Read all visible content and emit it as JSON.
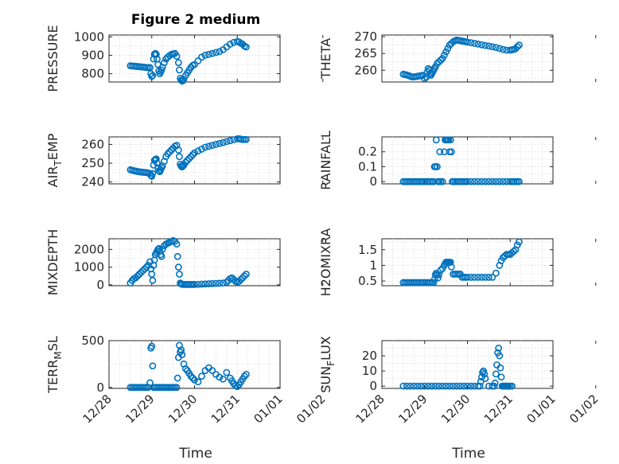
{
  "figure": {
    "title": "Figure 2 medium",
    "marker_color": "#0072bd",
    "x_tick_labels": [
      "12/28",
      "12/29",
      "12/30",
      "12/31",
      "01/01",
      "01/02"
    ],
    "x_label": "Time"
  },
  "chart_data": [
    {
      "type": "scatter",
      "ylabel": "PRESSURE",
      "ylim": [
        755,
        1010
      ],
      "yticks": [
        800,
        900,
        1000
      ],
      "ytick_labels": [
        "800",
        "900",
        "1000"
      ],
      "x": [
        12.0,
        13.0,
        14.0,
        15.0,
        16.0,
        17.0,
        18.0,
        19.0,
        20.0,
        21.0,
        22.0,
        23.0,
        23.5,
        24.0,
        24.5,
        25.0,
        25.5,
        26.0,
        26.5,
        27.0,
        27.5,
        28.0,
        28.5,
        29.0,
        29.5,
        30.0,
        31.0,
        32.0,
        33.0,
        34.0,
        35.0,
        36.0,
        37.0,
        38.0,
        39.0,
        39.5,
        40.0,
        40.5,
        41.0,
        41.5,
        42.0,
        43.0,
        44.0,
        45.0,
        46.0,
        47.0,
        48.0,
        50.0,
        52.0,
        54.0,
        56.0,
        58.0,
        60.0,
        62.0,
        64.0,
        66.0,
        68.0,
        70.0,
        72.0,
        73.0,
        74.0,
        75.0,
        76.0,
        77.0
      ],
      "y": [
        843,
        842,
        841,
        840,
        839,
        838,
        837,
        836,
        835,
        834,
        833,
        833,
        800,
        785,
        790,
        880,
        905,
        910,
        905,
        880,
        850,
        815,
        800,
        810,
        820,
        835,
        860,
        880,
        890,
        898,
        905,
        908,
        910,
        895,
        860,
        820,
        775,
        765,
        760,
        762,
        770,
        790,
        805,
        820,
        835,
        845,
        850,
        870,
        890,
        900,
        905,
        910,
        915,
        920,
        930,
        945,
        960,
        970,
        975,
        972,
        965,
        960,
        950,
        945
      ]
    },
    {
      "type": "scatter",
      "ylabel": "THETA",
      "ylim": [
        256.5,
        270.5
      ],
      "yticks": [
        260,
        265,
        270
      ],
      "ytick_labels": [
        "260",
        "265",
        "270"
      ],
      "x": [
        12.0,
        13.0,
        14.0,
        15.0,
        16.0,
        17.0,
        18.0,
        19.0,
        20.0,
        21.0,
        22.0,
        23.0,
        24.0,
        25.0,
        25.5,
        26.0,
        26.5,
        27.0,
        27.5,
        28.0,
        28.5,
        29.0,
        29.5,
        30.0,
        31.0,
        32.0,
        33.0,
        34.0,
        35.0,
        36.0,
        37.0,
        38.0,
        39.0,
        40.0,
        41.0,
        42.0,
        43.0,
        44.0,
        45.0,
        46.0,
        47.0,
        48.0,
        50.0,
        52.0,
        54.0,
        56.0,
        58.0,
        60.0,
        62.0,
        64.0,
        66.0,
        68.0,
        70.0,
        72.0,
        73.0,
        74.0,
        75.0,
        76.0,
        77.0
      ],
      "y": [
        258.8,
        258.7,
        258.6,
        258.4,
        258.2,
        258.0,
        258.0,
        258.1,
        258.2,
        258.3,
        258.4,
        258.5,
        257.5,
        258.0,
        259.5,
        260.5,
        260.0,
        259.0,
        258.5,
        259.0,
        259.5,
        260.0,
        260.5,
        261.0,
        262.0,
        262.5,
        263.0,
        263.5,
        264.5,
        265.5,
        266.5,
        267.5,
        268.0,
        268.5,
        268.8,
        269.0,
        268.9,
        268.8,
        268.7,
        268.6,
        268.5,
        268.4,
        268.2,
        268.0,
        267.8,
        267.6,
        267.4,
        267.2,
        267.0,
        266.8,
        266.5,
        266.2,
        266.0,
        266.0,
        266.1,
        266.2,
        266.4,
        267.0,
        267.5
      ]
    },
    {
      "type": "scatter",
      "ylabel": "AIR_TEMP",
      "ylim": [
        239,
        264
      ],
      "yticks": [
        240,
        250,
        260
      ],
      "ytick_labels": [
        "240",
        "250",
        "260"
      ],
      "x": [
        12.0,
        13.0,
        14.0,
        15.0,
        16.0,
        17.0,
        18.0,
        19.0,
        20.0,
        21.0,
        22.0,
        23.0,
        23.5,
        24.0,
        24.5,
        25.0,
        25.5,
        26.0,
        26.5,
        27.0,
        27.5,
        28.0,
        28.5,
        29.0,
        29.5,
        30.0,
        31.0,
        32.0,
        33.0,
        34.0,
        35.0,
        36.0,
        37.0,
        38.0,
        39.0,
        39.5,
        40.0,
        40.5,
        41.0,
        41.5,
        42.0,
        43.0,
        44.0,
        45.0,
        46.0,
        47.0,
        48.0,
        50.0,
        52.0,
        54.0,
        56.0,
        58.0,
        60.0,
        62.0,
        64.0,
        66.0,
        68.0,
        70.0,
        72.0,
        73.0,
        74.0,
        75.0,
        76.0,
        77.0
      ],
      "y": [
        246.5,
        246.2,
        246.0,
        245.8,
        245.6,
        245.4,
        245.3,
        245.2,
        245.1,
        245.0,
        244.8,
        244.5,
        243.5,
        243.0,
        244.5,
        249.0,
        251.5,
        252.0,
        252.3,
        250.0,
        247.5,
        246.0,
        245.5,
        246.5,
        247.5,
        248.5,
        251.0,
        253.5,
        255.0,
        256.0,
        257.0,
        258.0,
        259.0,
        259.5,
        257.0,
        253.5,
        249.5,
        248.5,
        248.0,
        248.5,
        249.0,
        250.5,
        251.5,
        252.5,
        253.5,
        254.5,
        255.5,
        256.5,
        257.5,
        258.5,
        259.0,
        259.5,
        260.0,
        260.5,
        261.0,
        261.5,
        262.0,
        262.5,
        263.0,
        263.0,
        262.8,
        262.6,
        262.6,
        262.6
      ]
    },
    {
      "type": "scatter",
      "ylabel": "RAINFALL",
      "ylim": [
        -0.015,
        0.3
      ],
      "yticks": [
        0,
        0.1,
        0.2
      ],
      "ytick_labels": [
        "0",
        "0.1",
        "0.2"
      ],
      "x": [
        12.0,
        13.0,
        14.0,
        15.0,
        16.0,
        17.0,
        18.0,
        19.0,
        20.0,
        21.0,
        22.0,
        23.0,
        24.0,
        25.0,
        26.0,
        27.0,
        28.0,
        29.0,
        29.5,
        30.0,
        30.5,
        31.0,
        31.5,
        32.0,
        32.5,
        33.0,
        34.0,
        35.0,
        35.5,
        36.0,
        36.5,
        37.0,
        37.5,
        38.0,
        38.5,
        39.0,
        39.5,
        40.0,
        41.0,
        42.0,
        43.0,
        44.0,
        45.0,
        46.0,
        47.0,
        48.0,
        50.0,
        52.0,
        54.0,
        56.0,
        58.0,
        60.0,
        62.0,
        64.0,
        66.0,
        68.0,
        70.0,
        72.0,
        73.0,
        74.0,
        75.0,
        76.0,
        77.0
      ],
      "y": [
        0,
        0,
        0,
        0,
        0,
        0,
        0,
        0,
        0,
        0,
        0,
        0,
        0,
        0,
        0,
        0,
        0,
        0,
        0.1,
        0.1,
        0.28,
        0.1,
        0,
        0,
        0.2,
        0,
        0,
        0.2,
        0.28,
        0.28,
        0.28,
        0.28,
        0.28,
        0.2,
        0.28,
        0.2,
        0,
        0,
        0,
        0,
        0,
        0,
        0,
        0,
        0,
        0,
        0,
        0,
        0,
        0,
        0,
        0,
        0,
        0,
        0,
        0,
        0,
        0,
        0,
        0,
        0,
        0,
        0
      ]
    },
    {
      "type": "scatter",
      "ylabel": "MIXDEPTH",
      "ylim": [
        -50,
        2600
      ],
      "yticks": [
        0,
        1000,
        2000
      ],
      "ytick_labels": [
        "0",
        "1000",
        "2000"
      ],
      "x": [
        12.0,
        13.0,
        14.0,
        15.0,
        16.0,
        17.0,
        18.0,
        19.0,
        20.0,
        21.0,
        22.0,
        23.0,
        23.5,
        24.0,
        24.5,
        25.0,
        25.5,
        26.0,
        26.5,
        27.0,
        27.5,
        28.0,
        28.5,
        29.0,
        29.5,
        30.0,
        31.0,
        32.0,
        33.0,
        34.0,
        35.0,
        36.0,
        37.0,
        38.0,
        38.5,
        39.0,
        39.5,
        40.0,
        40.5,
        41.0,
        42.0,
        43.0,
        44.0,
        45.0,
        46.0,
        47.0,
        48.0,
        50.0,
        52.0,
        54.0,
        56.0,
        58.0,
        60.0,
        62.0,
        64.0,
        66.0,
        67.0,
        68.0,
        69.0,
        70.0,
        71.0,
        72.0,
        73.0,
        74.0,
        75.0,
        76.0,
        77.0
      ],
      "y": [
        100,
        250,
        350,
        400,
        500,
        600,
        700,
        800,
        900,
        1000,
        1100,
        1300,
        900,
        600,
        250,
        1100,
        1400,
        1700,
        1800,
        1900,
        2000,
        2050,
        1900,
        1700,
        1600,
        2000,
        2200,
        2300,
        2350,
        2400,
        2450,
        2500,
        2450,
        2300,
        1600,
        1000,
        600,
        100,
        50,
        30,
        20,
        20,
        20,
        20,
        20,
        20,
        20,
        30,
        40,
        50,
        60,
        70,
        80,
        90,
        100,
        150,
        250,
        350,
        400,
        300,
        200,
        150,
        200,
        300,
        400,
        500,
        600
      ]
    },
    {
      "type": "scatter",
      "ylabel": "H2OMIXRA",
      "ylim": [
        0.35,
        1.85
      ],
      "yticks": [
        0.5,
        1,
        1.5
      ],
      "ytick_labels": [
        "0.5",
        "1",
        "1.5"
      ],
      "x": [
        12.0,
        13.0,
        14.0,
        15.0,
        16.0,
        17.0,
        18.0,
        19.0,
        20.0,
        21.0,
        22.0,
        23.0,
        24.0,
        25.0,
        26.0,
        27.0,
        28.0,
        29.0,
        29.5,
        30.0,
        30.5,
        31.0,
        31.5,
        32.0,
        33.0,
        34.0,
        35.0,
        35.5,
        36.0,
        36.5,
        37.0,
        37.5,
        38.0,
        38.5,
        39.0,
        40.0,
        41.0,
        42.0,
        43.0,
        44.0,
        45.0,
        46.0,
        47.0,
        48.0,
        50.0,
        52.0,
        54.0,
        56.0,
        58.0,
        60.0,
        62.0,
        64.0,
        66.0,
        67.0,
        68.0,
        69.0,
        70.0,
        71.0,
        72.0,
        73.0,
        74.0,
        75.0,
        76.0,
        77.0
      ],
      "y": [
        0.45,
        0.45,
        0.45,
        0.45,
        0.45,
        0.45,
        0.45,
        0.45,
        0.45,
        0.45,
        0.45,
        0.45,
        0.45,
        0.45,
        0.45,
        0.45,
        0.45,
        0.45,
        0.55,
        0.7,
        0.75,
        0.7,
        0.6,
        0.7,
        0.85,
        0.9,
        1.0,
        1.05,
        1.1,
        1.1,
        1.1,
        1.1,
        1.1,
        1.1,
        0.95,
        0.72,
        0.72,
        0.72,
        0.72,
        0.72,
        0.62,
        0.62,
        0.62,
        0.62,
        0.62,
        0.62,
        0.62,
        0.62,
        0.62,
        0.62,
        0.62,
        0.75,
        1.0,
        1.15,
        1.25,
        1.3,
        1.35,
        1.35,
        1.35,
        1.4,
        1.45,
        1.5,
        1.65,
        1.75
      ]
    },
    {
      "type": "scatter",
      "ylabel": "TERR_MSL",
      "ylim": [
        -10,
        500
      ],
      "yticks": [
        0,
        500
      ],
      "ytick_labels": [
        "0",
        "500"
      ],
      "x": [
        12.0,
        13.0,
        14.0,
        15.0,
        16.0,
        17.0,
        18.0,
        19.0,
        20.0,
        21.0,
        22.0,
        23.0,
        23.5,
        24.0,
        24.5,
        25.0,
        26.0,
        27.0,
        28.0,
        29.0,
        30.0,
        31.0,
        32.0,
        33.0,
        34.0,
        35.0,
        36.0,
        37.0,
        38.0,
        38.5,
        39.0,
        39.5,
        40.0,
        40.5,
        41.0,
        42.0,
        43.0,
        44.0,
        45.0,
        46.0,
        47.0,
        48.0,
        50.0,
        52.0,
        54.0,
        56.0,
        58.0,
        60.0,
        62.0,
        64.0,
        66.0,
        68.0,
        69.0,
        70.0,
        71.0,
        72.0,
        73.0,
        74.0,
        75.0,
        76.0,
        77.0
      ],
      "y": [
        0,
        0,
        0,
        0,
        0,
        0,
        0,
        0,
        0,
        0,
        0,
        50,
        420,
        440,
        230,
        0,
        0,
        0,
        0,
        0,
        0,
        0,
        0,
        0,
        0,
        0,
        0,
        0,
        0,
        100,
        320,
        450,
        380,
        400,
        350,
        250,
        200,
        180,
        150,
        120,
        100,
        80,
        60,
        120,
        180,
        210,
        180,
        140,
        110,
        90,
        160,
        100,
        70,
        40,
        20,
        10,
        30,
        60,
        90,
        120,
        140
      ]
    },
    {
      "type": "scatter",
      "ylabel": "SUN_FLUX",
      "ylim": [
        -1.5,
        30
      ],
      "yticks": [
        0,
        10,
        20
      ],
      "ytick_labels": [
        "0",
        "10",
        "20"
      ],
      "x": [
        12.0,
        14.0,
        16.0,
        18.0,
        20.0,
        22.0,
        24.0,
        26.0,
        28.0,
        30.0,
        32.0,
        34.0,
        36.0,
        38.0,
        40.0,
        42.0,
        44.0,
        46.0,
        48.0,
        50.0,
        52.0,
        54.0,
        55.0,
        55.5,
        56.0,
        56.5,
        57.0,
        57.5,
        58.0,
        60.0,
        62.0,
        63.0,
        63.5,
        64.0,
        64.5,
        65.0,
        65.5,
        66.0,
        66.5,
        67.0,
        67.5,
        68.0,
        68.5,
        69.0,
        69.5,
        70.0,
        71.0,
        72.0,
        73.0
      ],
      "y": [
        0,
        0,
        0,
        0,
        0,
        0,
        0,
        0,
        0,
        0,
        0,
        0,
        0,
        0,
        0,
        0,
        0,
        0,
        0,
        0,
        0,
        0,
        0,
        3,
        6,
        9,
        10,
        8,
        5,
        0,
        0,
        0,
        2,
        8,
        14,
        22,
        25,
        20,
        12,
        6,
        0,
        0,
        0,
        0,
        0,
        0,
        0,
        0,
        0
      ]
    }
  ]
}
